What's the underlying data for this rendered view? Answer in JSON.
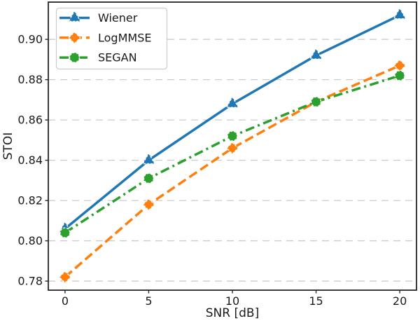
{
  "chart_data": {
    "type": "line",
    "title": "",
    "xlabel": "SNR [dB]",
    "ylabel": "STOI",
    "x": [
      0,
      5,
      10,
      15,
      20
    ],
    "series": [
      {
        "name": "Wiener",
        "values": [
          0.806,
          0.84,
          0.868,
          0.892,
          0.912
        ],
        "color": "#1f77b4",
        "linestyle": "solid",
        "marker": "triangle-up"
      },
      {
        "name": "LogMMSE",
        "values": [
          0.782,
          0.818,
          0.846,
          0.869,
          0.887
        ],
        "color": "#ff7f0e",
        "linestyle": "dashed",
        "marker": "diamond"
      },
      {
        "name": "SEGAN",
        "values": [
          0.804,
          0.831,
          0.852,
          0.869,
          0.882
        ],
        "color": "#2ca02c",
        "linestyle": "dashdot",
        "marker": "circle"
      }
    ],
    "xticks": [
      0,
      5,
      10,
      15,
      20
    ],
    "yticks": [
      0.78,
      0.8,
      0.82,
      0.84,
      0.86,
      0.88,
      0.9
    ],
    "xlim": [
      -1,
      21
    ],
    "ylim": [
      0.7755,
      0.9185
    ],
    "grid": "horizontal-dashed",
    "legend": {
      "position": "upper-left",
      "entries": [
        "Wiener",
        "LogMMSE",
        "SEGAN"
      ]
    }
  },
  "colors": {
    "grid": "#cccccc",
    "spine": "#262626",
    "tick": "#262626",
    "text": "#1a1a1a",
    "background": "#ffffff",
    "marker_edge": "#ffffff",
    "legend_border": "#cccccc"
  }
}
